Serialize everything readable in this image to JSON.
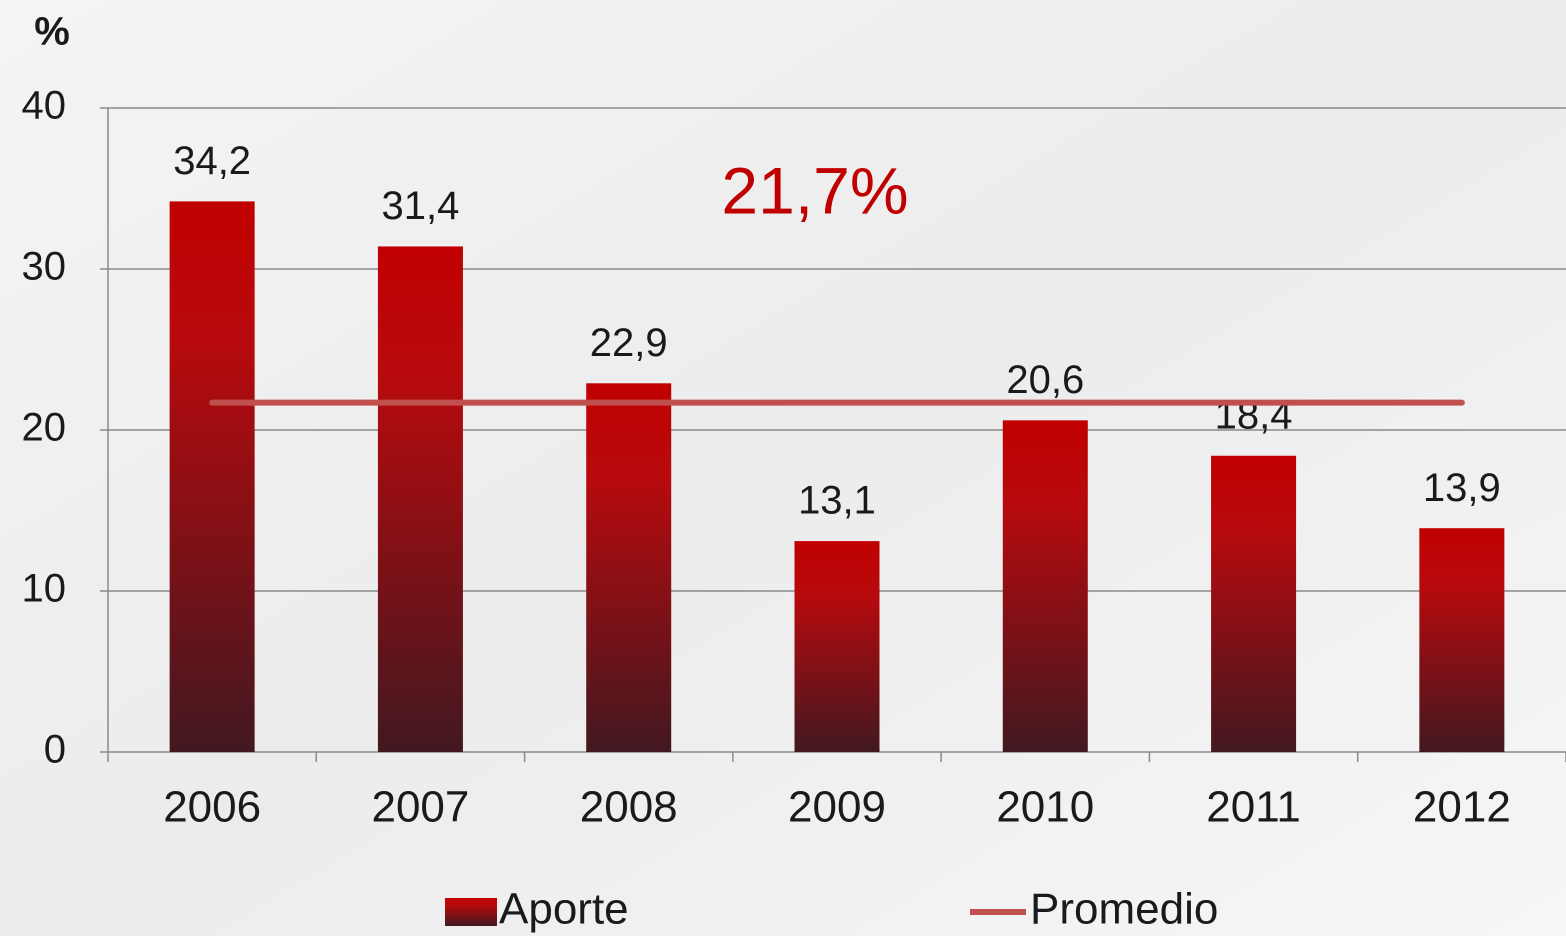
{
  "chart_data": {
    "type": "bar",
    "y_label": "%",
    "categories": [
      "2006",
      "2007",
      "2008",
      "2009",
      "2010",
      "2011",
      "2012"
    ],
    "series": [
      {
        "name": "Aporte",
        "type": "bar",
        "color": "#c00000",
        "values": [
          34.2,
          31.4,
          22.9,
          13.1,
          20.6,
          18.4,
          13.9
        ],
        "value_labels": [
          "34,2",
          "31,4",
          "22,9",
          "13,1",
          "20,6",
          "18,4",
          "13,9"
        ]
      },
      {
        "name": "Promedio",
        "type": "line",
        "color": "#c0504d",
        "values": [
          21.7,
          21.7,
          21.7,
          21.7,
          21.7,
          21.7,
          21.7
        ]
      }
    ],
    "annotations": [
      {
        "text": "21,7%",
        "color": "#c00000"
      }
    ],
    "ylim": [
      0,
      40
    ],
    "yticks": [
      0,
      10,
      20,
      30,
      40
    ],
    "grid": true
  }
}
